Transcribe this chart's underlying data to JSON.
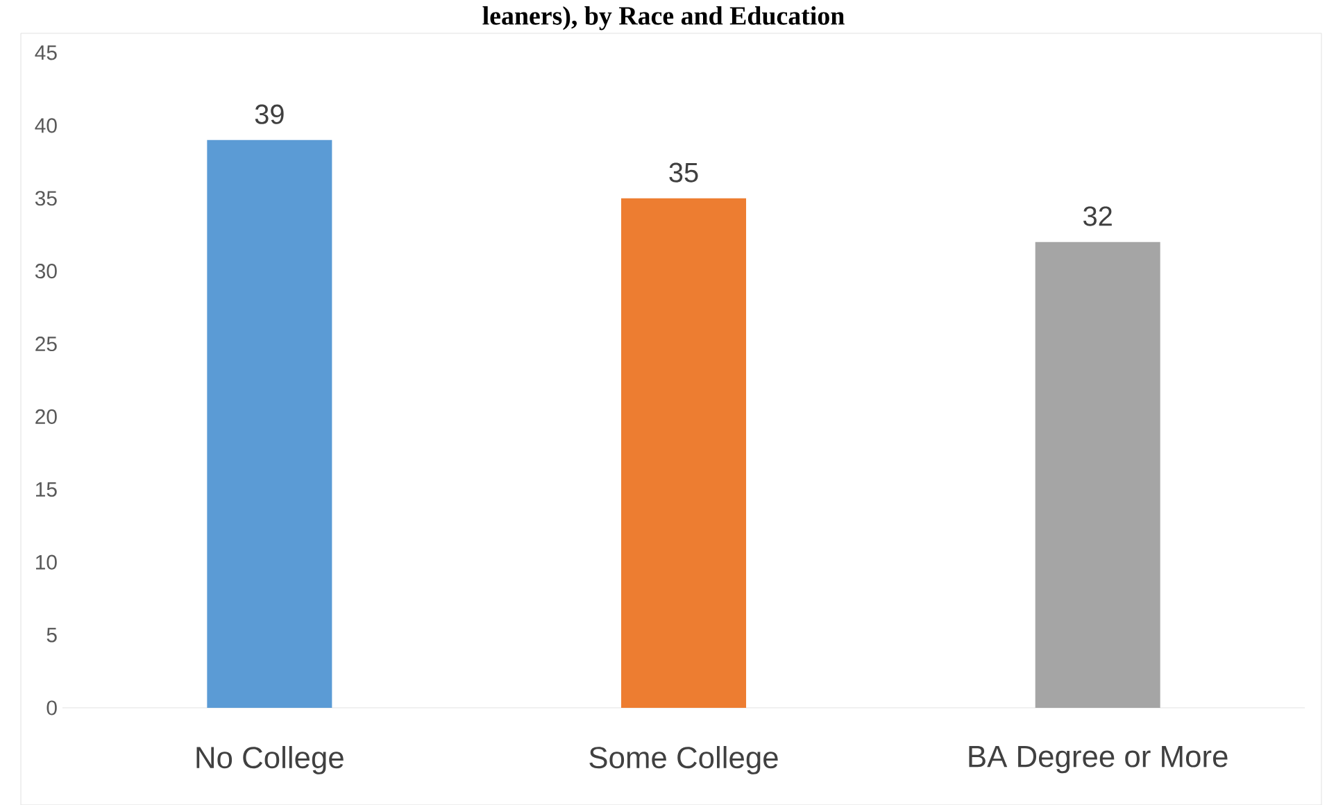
{
  "chart_data": {
    "type": "bar",
    "title": "leaners), by Race and Education",
    "categories": [
      "No College",
      "Some College",
      "BA Degree or More"
    ],
    "values": [
      39,
      35,
      32
    ],
    "colors": [
      "#5b9bd5",
      "#ed7d31",
      "#a5a5a5"
    ],
    "ylim": [
      0,
      45
    ],
    "yticks": [
      0,
      5,
      10,
      15,
      20,
      25,
      30,
      35,
      40,
      45
    ],
    "data_labels": true
  }
}
